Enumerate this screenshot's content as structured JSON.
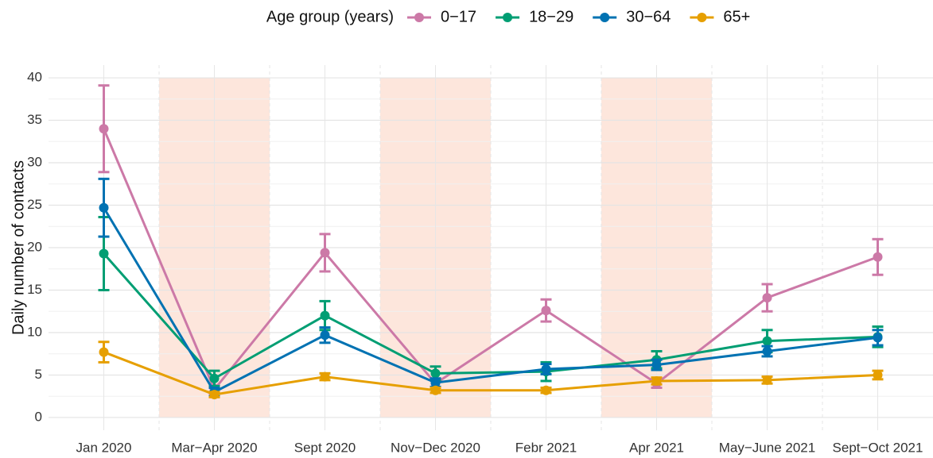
{
  "chart_data": {
    "type": "line",
    "y_label": "Daily number of contacts",
    "legend_title": "Age group (years)",
    "legend_position": "top",
    "grid": true,
    "categories": [
      "Jan 2020",
      "Mar−Apr 2020",
      "Sept 2020",
      "Nov−Dec 2020",
      "Febr 2021",
      "Apr 2021",
      "May−June 2021",
      "Sept−Oct 2021"
    ],
    "ylim": [
      -1.5,
      41.5
    ],
    "yticks": [
      0,
      5,
      10,
      15,
      20,
      25,
      30,
      35,
      40
    ],
    "series": [
      {
        "name": "0−17",
        "color": "#cc79a7",
        "values": [
          34,
          3.3,
          19.4,
          4.0,
          12.6,
          4.0,
          14.1,
          18.9
        ],
        "errors": [
          5.1,
          0.5,
          2.2,
          0.5,
          1.3,
          0.5,
          1.6,
          2.1
        ]
      },
      {
        "name": "18−29",
        "color": "#009e73",
        "values": [
          19.3,
          4.6,
          12.0,
          5.2,
          5.4,
          6.8,
          9.0,
          9.5
        ],
        "errors": [
          4.3,
          0.9,
          1.7,
          0.8,
          1.1,
          1.0,
          1.3,
          1.2
        ]
      },
      {
        "name": "30−64",
        "color": "#0072b2",
        "values": [
          24.7,
          3.0,
          9.7,
          4.1,
          5.7,
          6.2,
          7.8,
          9.4
        ],
        "errors": [
          3.4,
          0.5,
          0.9,
          0.5,
          0.6,
          0.6,
          0.6,
          0.9
        ]
      },
      {
        "name": "65+",
        "color": "#e69f00",
        "values": [
          7.7,
          2.7,
          4.8,
          3.2,
          3.2,
          4.3,
          4.4,
          5.0
        ],
        "errors": [
          1.2,
          0.3,
          0.4,
          0.3,
          0.3,
          0.4,
          0.4,
          0.5
        ]
      }
    ]
  }
}
